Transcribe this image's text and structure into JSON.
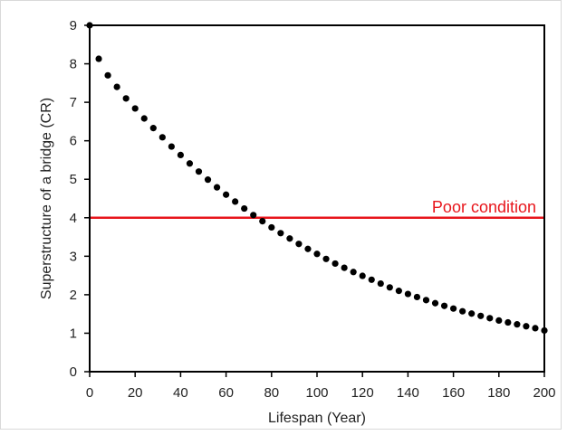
{
  "chart_data": {
    "type": "scatter",
    "title": "",
    "xlabel": "Lifespan (Year)",
    "ylabel": "Superstructure of a bridge (CR)",
    "xlim": [
      0,
      200
    ],
    "ylim": [
      0,
      9
    ],
    "xticks": [
      0,
      20,
      40,
      60,
      80,
      100,
      120,
      140,
      160,
      180,
      200
    ],
    "yticks": [
      0,
      1,
      2,
      3,
      4,
      5,
      6,
      7,
      8,
      9
    ],
    "grid": false,
    "legend": "none",
    "series": [
      {
        "color": "#000000",
        "x": [
          0,
          4,
          8,
          12,
          16,
          20,
          24,
          28,
          32,
          36,
          40,
          44,
          48,
          52,
          56,
          60,
          64,
          68,
          72,
          76,
          80,
          84,
          88,
          92,
          96,
          100,
          104,
          108,
          112,
          116,
          120,
          124,
          128,
          132,
          136,
          140,
          144,
          148,
          152,
          156,
          160,
          164,
          168,
          172,
          176,
          180,
          184,
          188,
          192,
          196,
          200
        ],
        "y": [
          9.0,
          8.13,
          7.7,
          7.4,
          7.1,
          6.84,
          6.58,
          6.33,
          6.09,
          5.85,
          5.63,
          5.41,
          5.2,
          4.99,
          4.79,
          4.6,
          4.42,
          4.24,
          4.07,
          3.91,
          3.75,
          3.6,
          3.46,
          3.32,
          3.19,
          3.06,
          2.93,
          2.81,
          2.7,
          2.59,
          2.49,
          2.39,
          2.29,
          2.19,
          2.1,
          2.02,
          1.94,
          1.86,
          1.78,
          1.71,
          1.64,
          1.57,
          1.51,
          1.45,
          1.39,
          1.33,
          1.28,
          1.23,
          1.18,
          1.13,
          1.07
        ]
      }
    ],
    "reference_line": {
      "y": 4,
      "label": "Poor condition",
      "color": "#e8161c"
    }
  }
}
